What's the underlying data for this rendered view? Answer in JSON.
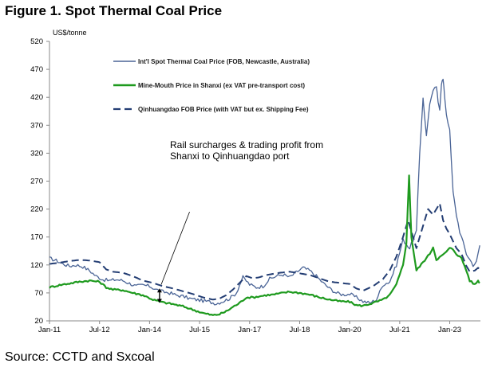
{
  "figure_title": "Figure 1. Spot Thermal Coal Price",
  "source": "Source: CCTD and Sxcoal",
  "colors": {
    "newcastle": "#4a6496",
    "shanxi": "#1e9a1e",
    "qhd": "#233d73",
    "axis": "#888888"
  },
  "chart_data": {
    "type": "line",
    "title": "Figure 1. Spot Thermal Coal Price",
    "ylabel": "US$/tonne",
    "xlabel": "",
    "ylim": [
      20,
      520
    ],
    "xlim": [
      2011.0,
      2023.92
    ],
    "yticks": [
      20,
      70,
      120,
      170,
      220,
      270,
      320,
      370,
      420,
      470,
      520
    ],
    "xticks": [
      {
        "label": "Jan-11",
        "x": 2011.0
      },
      {
        "label": "Jul-12",
        "x": 2012.5
      },
      {
        "label": "Jan-14",
        "x": 2014.0
      },
      {
        "label": "Jul-15",
        "x": 2015.5
      },
      {
        "label": "Jan-17",
        "x": 2017.0
      },
      {
        "label": "Jul-18",
        "x": 2018.5
      },
      {
        "label": "Jan-20",
        "x": 2020.0
      },
      {
        "label": "Jul-21",
        "x": 2021.5
      },
      {
        "label": "Jan-23",
        "x": 2023.0
      }
    ],
    "annotation": {
      "lines": [
        "Rail surcharges & trading profit from",
        "Shanxi to Qinhuangdao port"
      ],
      "arrow_from": [
        2015.2,
        215
      ],
      "arrow_to": [
        2014.35,
        85
      ],
      "span_x": 2014.3,
      "span_low": 52,
      "span_high": 78
    },
    "series": [
      {
        "name": "Int'l Spot Thermal Coal Price (FOB, Newcastle, Australia)",
        "style": "solid-thin",
        "points": [
          [
            2011.0,
            132
          ],
          [
            2011.2,
            128
          ],
          [
            2011.4,
            122
          ],
          [
            2011.6,
            118
          ],
          [
            2011.8,
            120
          ],
          [
            2012.0,
            117
          ],
          [
            2012.2,
            110
          ],
          [
            2012.4,
            100
          ],
          [
            2012.6,
            94
          ],
          [
            2012.8,
            92
          ],
          [
            2013.0,
            94
          ],
          [
            2013.2,
            92
          ],
          [
            2013.4,
            87
          ],
          [
            2013.6,
            82
          ],
          [
            2013.8,
            84
          ],
          [
            2014.0,
            82
          ],
          [
            2014.2,
            76
          ],
          [
            2014.4,
            72
          ],
          [
            2014.6,
            70
          ],
          [
            2014.8,
            66
          ],
          [
            2015.0,
            64
          ],
          [
            2015.2,
            60
          ],
          [
            2015.4,
            58
          ],
          [
            2015.6,
            56
          ],
          [
            2015.8,
            54
          ],
          [
            2016.0,
            51
          ],
          [
            2016.2,
            55
          ],
          [
            2016.4,
            60
          ],
          [
            2016.6,
            70
          ],
          [
            2016.8,
            98
          ],
          [
            2017.0,
            85
          ],
          [
            2017.2,
            80
          ],
          [
            2017.4,
            82
          ],
          [
            2017.6,
            95
          ],
          [
            2017.8,
            100
          ],
          [
            2018.0,
            103
          ],
          [
            2018.2,
            98
          ],
          [
            2018.4,
            107
          ],
          [
            2018.6,
            115
          ],
          [
            2018.8,
            110
          ],
          [
            2019.0,
            100
          ],
          [
            2019.2,
            88
          ],
          [
            2019.4,
            78
          ],
          [
            2019.6,
            70
          ],
          [
            2019.8,
            67
          ],
          [
            2020.0,
            68
          ],
          [
            2020.2,
            62
          ],
          [
            2020.4,
            55
          ],
          [
            2020.6,
            52
          ],
          [
            2020.8,
            58
          ],
          [
            2021.0,
            85
          ],
          [
            2021.2,
            90
          ],
          [
            2021.4,
            120
          ],
          [
            2021.6,
            165
          ],
          [
            2021.8,
            150
          ],
          [
            2022.0,
            180
          ],
          [
            2022.1,
            320
          ],
          [
            2022.2,
            420
          ],
          [
            2022.3,
            350
          ],
          [
            2022.4,
            410
          ],
          [
            2022.5,
            430
          ],
          [
            2022.6,
            440
          ],
          [
            2022.65,
            410
          ],
          [
            2022.7,
            400
          ],
          [
            2022.75,
            445
          ],
          [
            2022.8,
            452
          ],
          [
            2022.85,
            420
          ],
          [
            2022.9,
            390
          ],
          [
            2023.0,
            360
          ],
          [
            2023.1,
            250
          ],
          [
            2023.2,
            210
          ],
          [
            2023.3,
            180
          ],
          [
            2023.4,
            160
          ],
          [
            2023.5,
            140
          ],
          [
            2023.6,
            130
          ],
          [
            2023.7,
            120
          ],
          [
            2023.8,
            125
          ],
          [
            2023.9,
            155
          ]
        ]
      },
      {
        "name": "Mine-Mouth Price in Shanxi (ex VAT pre-transport cost)",
        "style": "solid-thick",
        "points": [
          [
            2011.0,
            80
          ],
          [
            2011.3,
            84
          ],
          [
            2011.6,
            87
          ],
          [
            2011.9,
            90
          ],
          [
            2012.2,
            92
          ],
          [
            2012.5,
            90
          ],
          [
            2012.7,
            80
          ],
          [
            2012.9,
            76
          ],
          [
            2013.2,
            75
          ],
          [
            2013.5,
            70
          ],
          [
            2013.8,
            66
          ],
          [
            2014.1,
            58
          ],
          [
            2014.4,
            53
          ],
          [
            2014.7,
            50
          ],
          [
            2015.0,
            46
          ],
          [
            2015.3,
            40
          ],
          [
            2015.6,
            34
          ],
          [
            2015.9,
            30
          ],
          [
            2016.1,
            32
          ],
          [
            2016.3,
            37
          ],
          [
            2016.5,
            45
          ],
          [
            2016.7,
            52
          ],
          [
            2016.9,
            62
          ],
          [
            2017.1,
            62
          ],
          [
            2017.3,
            64
          ],
          [
            2017.5,
            66
          ],
          [
            2017.7,
            67
          ],
          [
            2017.9,
            69
          ],
          [
            2018.2,
            72
          ],
          [
            2018.5,
            70
          ],
          [
            2018.8,
            67
          ],
          [
            2019.1,
            62
          ],
          [
            2019.4,
            58
          ],
          [
            2019.7,
            55
          ],
          [
            2020.0,
            54
          ],
          [
            2020.2,
            48
          ],
          [
            2020.4,
            47
          ],
          [
            2020.7,
            52
          ],
          [
            2021.0,
            58
          ],
          [
            2021.2,
            66
          ],
          [
            2021.4,
            85
          ],
          [
            2021.6,
            120
          ],
          [
            2021.7,
            160
          ],
          [
            2021.78,
            280
          ],
          [
            2021.85,
            170
          ],
          [
            2022.0,
            110
          ],
          [
            2022.2,
            125
          ],
          [
            2022.4,
            140
          ],
          [
            2022.5,
            152
          ],
          [
            2022.6,
            130
          ],
          [
            2022.8,
            138
          ],
          [
            2023.0,
            150
          ],
          [
            2023.1,
            148
          ],
          [
            2023.2,
            140
          ],
          [
            2023.35,
            132
          ],
          [
            2023.5,
            110
          ],
          [
            2023.6,
            92
          ],
          [
            2023.75,
            85
          ],
          [
            2023.85,
            92
          ],
          [
            2023.9,
            88
          ]
        ]
      },
      {
        "name": "Qinhuangdao FOB Price (with VAT but ex. Shipping Fee)",
        "style": "dashed",
        "points": [
          [
            2011.0,
            122
          ],
          [
            2011.3,
            124
          ],
          [
            2011.6,
            127
          ],
          [
            2011.9,
            129
          ],
          [
            2012.2,
            128
          ],
          [
            2012.5,
            125
          ],
          [
            2012.7,
            112
          ],
          [
            2012.9,
            108
          ],
          [
            2013.2,
            106
          ],
          [
            2013.5,
            100
          ],
          [
            2013.8,
            92
          ],
          [
            2014.1,
            88
          ],
          [
            2014.4,
            82
          ],
          [
            2014.7,
            78
          ],
          [
            2015.0,
            73
          ],
          [
            2015.3,
            68
          ],
          [
            2015.6,
            62
          ],
          [
            2015.9,
            58
          ],
          [
            2016.1,
            60
          ],
          [
            2016.3,
            66
          ],
          [
            2016.5,
            76
          ],
          [
            2016.7,
            88
          ],
          [
            2016.9,
            100
          ],
          [
            2017.1,
            96
          ],
          [
            2017.3,
            98
          ],
          [
            2017.5,
            102
          ],
          [
            2017.7,
            104
          ],
          [
            2017.9,
            106
          ],
          [
            2018.2,
            108
          ],
          [
            2018.5,
            105
          ],
          [
            2018.8,
            102
          ],
          [
            2019.1,
            96
          ],
          [
            2019.4,
            90
          ],
          [
            2019.7,
            88
          ],
          [
            2020.0,
            86
          ],
          [
            2020.2,
            78
          ],
          [
            2020.4,
            74
          ],
          [
            2020.7,
            82
          ],
          [
            2021.0,
            95
          ],
          [
            2021.2,
            110
          ],
          [
            2021.4,
            135
          ],
          [
            2021.6,
            170
          ],
          [
            2021.75,
            200
          ],
          [
            2021.85,
            180
          ],
          [
            2022.0,
            150
          ],
          [
            2022.2,
            190
          ],
          [
            2022.35,
            220
          ],
          [
            2022.5,
            210
          ],
          [
            2022.7,
            230
          ],
          [
            2022.8,
            200
          ],
          [
            2022.9,
            185
          ],
          [
            2023.0,
            175
          ],
          [
            2023.2,
            150
          ],
          [
            2023.35,
            140
          ],
          [
            2023.5,
            118
          ],
          [
            2023.6,
            108
          ],
          [
            2023.75,
            110
          ],
          [
            2023.85,
            115
          ],
          [
            2023.9,
            112
          ]
        ]
      }
    ]
  }
}
